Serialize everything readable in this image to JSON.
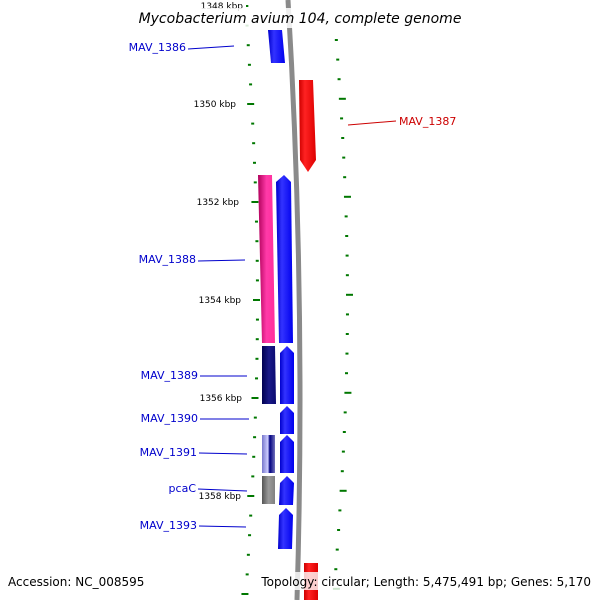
{
  "title": "Mycobacterium avium 104, complete genome",
  "footer": {
    "accession": "Accession: NC_008595",
    "topology": "Topology: circular; Length: 5,475,491 bp; Genes: 5,170"
  },
  "kbp_labels": [
    "1348 kbp",
    "1350 kbp",
    "1352 kbp",
    "1354 kbp",
    "1356 kbp",
    "1358 kbp"
  ],
  "gene_labels": [
    {
      "text": "MAV_1386",
      "color": "#0000cc"
    },
    {
      "text": "MAV_1387",
      "color": "#cc0000"
    },
    {
      "text": "MAV_1388",
      "color": "#0000cc"
    },
    {
      "text": "MAV_1389",
      "color": "#0000cc"
    },
    {
      "text": "MAV_1390",
      "color": "#0000cc"
    },
    {
      "text": "MAV_1391",
      "color": "#0000cc"
    },
    {
      "text": "pcaC",
      "color": "#0000cc"
    },
    {
      "text": "MAV_1393",
      "color": "#0000cc"
    }
  ],
  "colors": {
    "forward_strand": "#0000ff",
    "reverse_strand": "#ff0000",
    "cds_pink": "#ff2d9b",
    "cds_navy": "#0a0a70",
    "cds_gray": "#808080",
    "backbone": "#808080",
    "tick": "#007700"
  }
}
